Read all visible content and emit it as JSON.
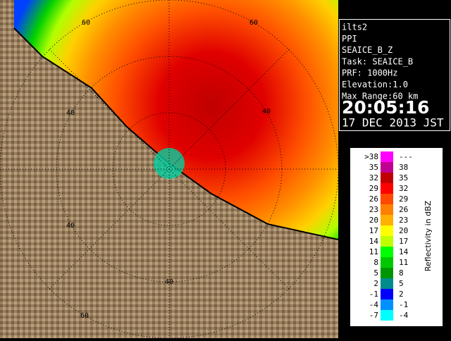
{
  "info": {
    "lines": [
      "ilts2",
      "PPI",
      "SEAICE_B_Z",
      "Task: SEAICE_B",
      "PRF: 1000Hz",
      "Elevation:1.0",
      "Max Range:60 km"
    ],
    "time": "20:05:16",
    "date": "17 DEC 2013 JST"
  },
  "ring_labels": [
    "60",
    "60",
    "40",
    "40",
    "40",
    "40",
    "60"
  ],
  "legend": {
    "title": "Reflectivity in dBZ",
    "rows": [
      {
        "low": ">38",
        "high": "---",
        "color": "#ff00ff"
      },
      {
        "low": "35",
        "high": "38",
        "color": "#c00090"
      },
      {
        "low": "32",
        "high": "35",
        "color": "#c00000"
      },
      {
        "low": "29",
        "high": "32",
        "color": "#ff0000"
      },
      {
        "low": "26",
        "high": "29",
        "color": "#ff4800"
      },
      {
        "low": "23",
        "high": "26",
        "color": "#ff8000"
      },
      {
        "low": "20",
        "high": "23",
        "color": "#ffb000"
      },
      {
        "low": "17",
        "high": "20",
        "color": "#ffff00"
      },
      {
        "low": "14",
        "high": "17",
        "color": "#c0ff00"
      },
      {
        "low": "11",
        "high": "14",
        "color": "#00ff00"
      },
      {
        "low": "8",
        "high": "11",
        "color": "#00c800"
      },
      {
        "low": "5",
        "high": "8",
        "color": "#009600"
      },
      {
        "low": "2",
        "high": "5",
        "color": "#008c8c"
      },
      {
        "low": "-1",
        "high": "2",
        "color": "#0000ff"
      },
      {
        "low": "-4",
        "high": "-1",
        "color": "#0090ff"
      },
      {
        "low": "-7",
        "high": "-4",
        "color": "#00ffff"
      }
    ]
  }
}
